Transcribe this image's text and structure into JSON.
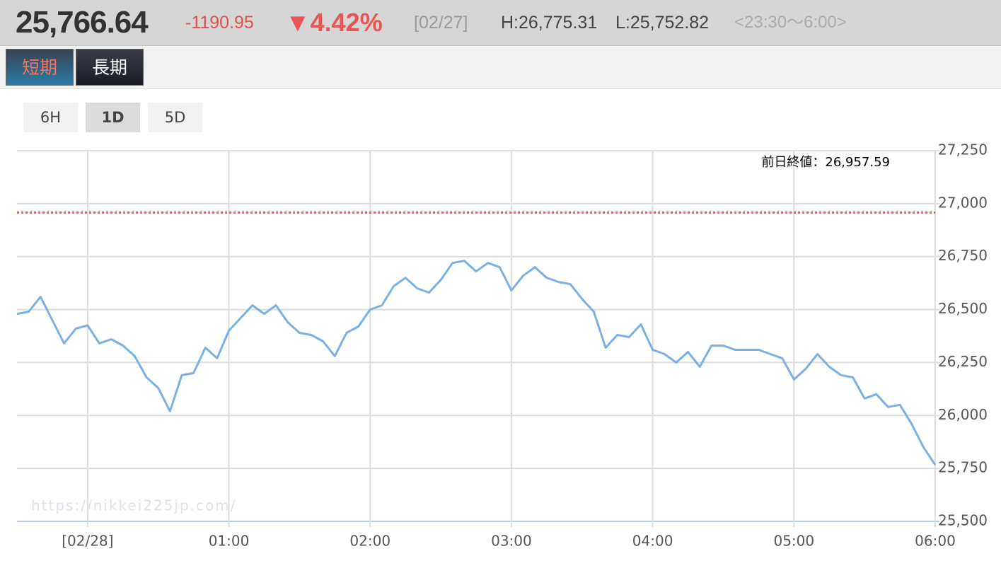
{
  "header": {
    "price": "25,766.64",
    "change": "-1190.95",
    "change_pct": "▼4.42%",
    "date": "[02/27]",
    "high": "H:26,775.31",
    "low": "L:25,752.82",
    "hours": "<23:30〜6:00>"
  },
  "tabs": [
    "短期",
    "長期"
  ],
  "ranges": [
    "6H",
    "1D",
    "5D"
  ],
  "chart_data": {
    "type": "line",
    "reference_line": {
      "value": 26957.59,
      "label": "前日終値：26,957.59",
      "color": "#e06060"
    },
    "watermark": "https://nikkei225jp.com/",
    "x": [
      -30,
      -25,
      -20,
      -15,
      -10,
      -5,
      0,
      5,
      10,
      15,
      20,
      25,
      30,
      35,
      40,
      45,
      50,
      55,
      60,
      65,
      70,
      75,
      80,
      85,
      90,
      95,
      100,
      105,
      110,
      115,
      120,
      125,
      130,
      135,
      140,
      145,
      150,
      155,
      160,
      165,
      170,
      175,
      180,
      185,
      190,
      195,
      200,
      205,
      210,
      215,
      220,
      225,
      230,
      235,
      240,
      245,
      250,
      255,
      260,
      265,
      270,
      275,
      280,
      285,
      290,
      295,
      300,
      305,
      310,
      315,
      320,
      325,
      330,
      335,
      340,
      345,
      350,
      355,
      360
    ],
    "series": [
      {
        "color": "#7ab0e4",
        "values": [
          26480,
          26490,
          26560,
          26450,
          26340,
          26410,
          26425,
          26340,
          26360,
          26330,
          26280,
          26180,
          26130,
          26020,
          26190,
          26200,
          26320,
          26270,
          26400,
          26460,
          26520,
          26480,
          26520,
          26440,
          26390,
          26380,
          26350,
          26280,
          26390,
          26420,
          26500,
          26520,
          26610,
          26650,
          26600,
          26580,
          26640,
          26720,
          26730,
          26680,
          26720,
          26700,
          26590,
          26660,
          26700,
          26650,
          26630,
          26620,
          26550,
          26490,
          26320,
          26380,
          26370,
          26430,
          26310,
          26290,
          26250,
          26300,
          26230,
          26330,
          26330,
          26310,
          26310,
          26310,
          26290,
          26270,
          26170,
          26220,
          26290,
          26230,
          26190,
          26180,
          26080,
          26100,
          26040,
          26050,
          25960,
          25850,
          25766.64
        ]
      }
    ],
    "xlim": [
      -30,
      360
    ],
    "xticks": [
      {
        "value": 0,
        "label": "[02/28]"
      },
      {
        "value": 60,
        "label": "01:00"
      },
      {
        "value": 120,
        "label": "02:00"
      },
      {
        "value": 180,
        "label": "03:00"
      },
      {
        "value": 240,
        "label": "04:00"
      },
      {
        "value": 300,
        "label": "05:00"
      },
      {
        "value": 360,
        "label": "06:00"
      }
    ],
    "ylim": [
      25500,
      27250
    ],
    "yticks": [
      {
        "value": 25500,
        "label": "25,500"
      },
      {
        "value": 25750,
        "label": "25,750"
      },
      {
        "value": 26000,
        "label": "26,000"
      },
      {
        "value": 26250,
        "label": "26,250"
      },
      {
        "value": 26500,
        "label": "26,500"
      },
      {
        "value": 26750,
        "label": "26,750"
      },
      {
        "value": 27000,
        "label": "27,000"
      },
      {
        "value": 27250,
        "label": "27,250"
      }
    ],
    "grid": true
  }
}
